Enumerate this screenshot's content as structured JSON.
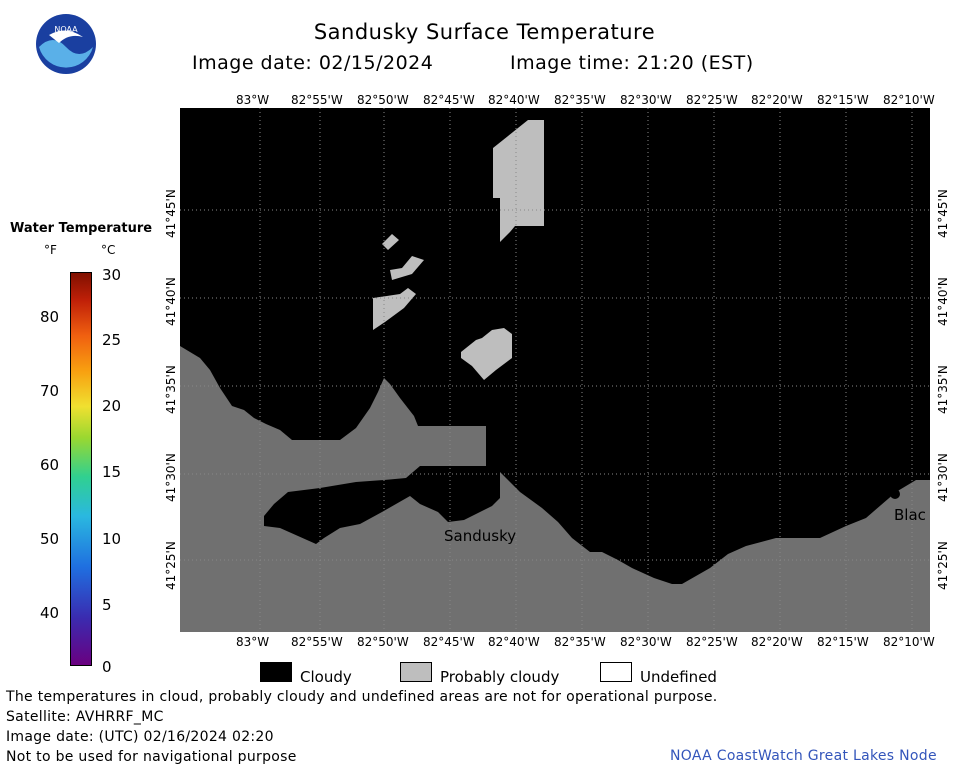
{
  "title": "Sandusky Surface Temperature",
  "image_date_label": "Image date: 02/15/2024",
  "image_time_label": "Image time: 21:20 (EST)",
  "logo": {
    "text": "NOAA",
    "colors": {
      "outer": "#1a3fa0",
      "inner": "#5ab0e8",
      "bird": "#ffffff"
    }
  },
  "lon_ticks": [
    "83°W",
    "82°55'W",
    "82°50'W",
    "82°45'W",
    "82°40'W",
    "82°35'W",
    "82°30'W",
    "82°25'W",
    "82°20'W",
    "82°15'W",
    "82°10'W"
  ],
  "lat_ticks": [
    "41°45'N",
    "41°40'N",
    "41°35'N",
    "41°30'N",
    "41°25'N"
  ],
  "places": {
    "sandusky": "Sandusky",
    "blac": "Blac"
  },
  "legend": {
    "title": "Water Temperature",
    "unit_f": "°F",
    "unit_c": "°C",
    "f_ticks": [
      "80",
      "70",
      "60",
      "50",
      "40"
    ],
    "c_ticks": [
      "30",
      "25",
      "20",
      "15",
      "10",
      "5",
      "0"
    ]
  },
  "key": {
    "cloudy": "Cloudy",
    "probably_cloudy": "Probably cloudy",
    "undefined": "Undefined"
  },
  "footer": {
    "line1": "The temperatures in cloud, probably cloudy and undefined areas are not for operational purpose.",
    "line2": "Satellite: AVHRRF_MC",
    "line3": "Image date: (UTC) 02/16/2024  02:20",
    "line4": "Not to be used for navigational purpose"
  },
  "credit": "NOAA CoastWatch Great Lakes Node",
  "colors": {
    "cloudy": "#000000",
    "probably_cloudy": "#bebebe",
    "land": "#707070",
    "undefined": "#ffffff",
    "credit": "#3355bb"
  }
}
